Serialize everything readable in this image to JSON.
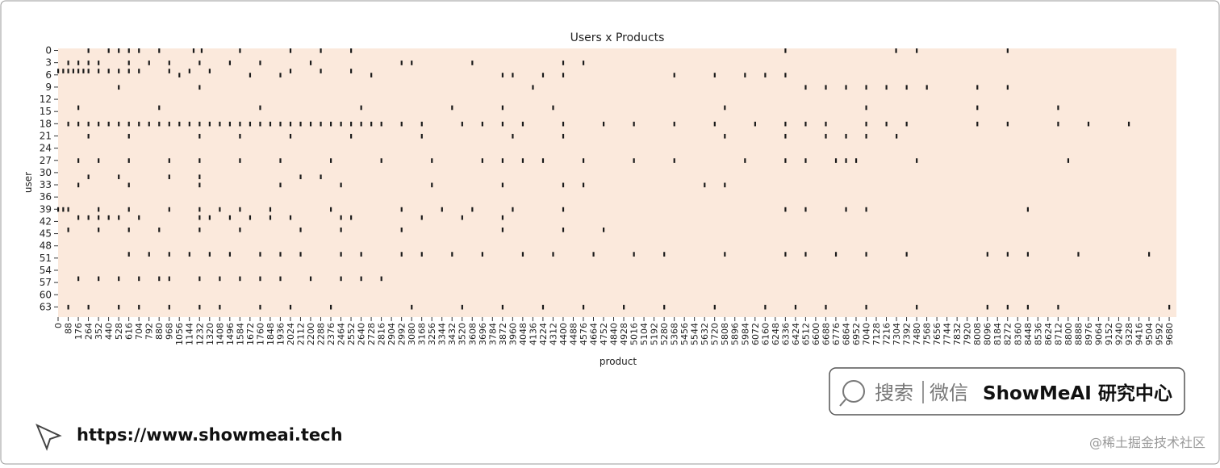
{
  "chart_data": {
    "type": "heatmap",
    "title": "Users x Products",
    "x_label": "product",
    "y_label": "user",
    "background_color": "#fbe9dc",
    "mark_color": "#1a1a1a",
    "xlim": [
      0,
      9743
    ],
    "ylim": [
      0,
      66
    ],
    "xticks": [
      0,
      88,
      176,
      264,
      352,
      440,
      528,
      616,
      704,
      792,
      880,
      968,
      1056,
      1144,
      1232,
      1320,
      1408,
      1496,
      1584,
      1672,
      1760,
      1848,
      1936,
      2024,
      2112,
      2200,
      2288,
      2376,
      2464,
      2552,
      2640,
      2728,
      2816,
      2904,
      2992,
      3080,
      3168,
      3256,
      3344,
      3432,
      3520,
      3608,
      3696,
      3784,
      3872,
      3960,
      4048,
      4136,
      4224,
      4312,
      4400,
      4488,
      4576,
      4664,
      4752,
      4840,
      4928,
      5016,
      5104,
      5192,
      5280,
      5368,
      5456,
      5544,
      5632,
      5720,
      5808,
      5896,
      5984,
      6072,
      6160,
      6248,
      6336,
      6424,
      6512,
      6600,
      6688,
      6776,
      6864,
      6952,
      7040,
      7128,
      7216,
      7304,
      7392,
      7480,
      7568,
      7656,
      7744,
      7832,
      7920,
      8008,
      8096,
      8184,
      8272,
      8360,
      8448,
      8536,
      8624,
      8712,
      8800,
      8888,
      8976,
      9064,
      9152,
      9240,
      9328,
      9416,
      9504,
      9592,
      9680
    ],
    "yticks": [
      0,
      3,
      6,
      9,
      12,
      15,
      18,
      21,
      24,
      27,
      30,
      33,
      36,
      39,
      42,
      45,
      48,
      51,
      54,
      57,
      60,
      63
    ],
    "rows": [
      {
        "user": 0,
        "products": [
          264,
          440,
          528,
          616,
          704,
          880,
          1180,
          1250,
          1584,
          2024,
          2288,
          2552,
          6336,
          7300,
          7480,
          8272
        ]
      },
      {
        "user": 3,
        "products": [
          88,
          176,
          264,
          352,
          616,
          792,
          968,
          1232,
          1496,
          1760,
          2200,
          2992,
          3080,
          3608,
          4400,
          4576
        ]
      },
      {
        "user": 5,
        "products": [
          0,
          44,
          88,
          132,
          176,
          220,
          264,
          352,
          440,
          528,
          616,
          704,
          968,
          1144,
          1320,
          2024,
          2288,
          2552
        ]
      },
      {
        "user": 6,
        "products": [
          1056,
          1672,
          1936,
          2728,
          3872,
          3960,
          4224,
          4400,
          5368,
          5720,
          5984,
          6160,
          6336
        ]
      },
      {
        "user": 9,
        "products": [
          528,
          1232,
          4136,
          6512,
          6688,
          6864,
          7040,
          7216,
          7392,
          7568,
          8008,
          8272
        ]
      },
      {
        "user": 14,
        "products": [
          176,
          880,
          1760,
          2640,
          3432,
          3872,
          4312,
          5808,
          7040,
          8008,
          8712
        ]
      },
      {
        "user": 18,
        "products": [
          88,
          176,
          264,
          352,
          440,
          528,
          616,
          704,
          792,
          880,
          968,
          1056,
          1144,
          1232,
          1320,
          1408,
          1496,
          1584,
          1672,
          1760,
          1848,
          1936,
          2024,
          2112,
          2200,
          2288,
          2376,
          2464,
          2552,
          2640,
          2728,
          2816,
          2992,
          3168,
          3520,
          3696,
          3872,
          4048,
          4400,
          4752,
          5016,
          5368,
          5720,
          6072,
          6336,
          6512,
          6688,
          7040,
          7216,
          7392,
          8008,
          8272,
          8712,
          8976,
          9328
        ]
      },
      {
        "user": 21,
        "products": [
          264,
          616,
          1232,
          1584,
          2024,
          2552,
          3168,
          3960,
          4400,
          5808,
          6336,
          6688,
          6864,
          7040,
          7304
        ]
      },
      {
        "user": 27,
        "products": [
          176,
          352,
          616,
          968,
          1232,
          1584,
          1936,
          2376,
          2816,
          3256,
          3696,
          3872,
          4048,
          4224,
          4576,
          5016,
          5368,
          5984,
          6336,
          6512,
          6776,
          6864,
          6952,
          7480,
          8800
        ]
      },
      {
        "user": 31,
        "products": [
          264,
          528,
          968,
          1232,
          2112,
          2288
        ]
      },
      {
        "user": 33,
        "products": [
          176,
          616,
          1232,
          1936,
          2464,
          3256,
          3872,
          4400,
          4576,
          5632,
          5808
        ]
      },
      {
        "user": 39,
        "products": [
          0,
          44,
          88,
          352,
          616,
          968,
          1232,
          1408,
          1584,
          1848,
          2376,
          2992,
          3344,
          3608,
          3960,
          4400,
          6336,
          6512,
          6864,
          7040,
          8448
        ]
      },
      {
        "user": 41,
        "products": [
          176,
          264,
          352,
          440,
          528,
          704,
          1232,
          1320,
          1496,
          1672,
          1848,
          2024,
          2464,
          2552,
          3168,
          3520,
          3872
        ]
      },
      {
        "user": 44,
        "products": [
          88,
          352,
          616,
          880,
          1232,
          1584,
          2112,
          2464,
          2992,
          3872,
          4400,
          4752
        ]
      },
      {
        "user": 50,
        "products": [
          616,
          792,
          968,
          1144,
          1320,
          1496,
          1760,
          1936,
          2112,
          2464,
          2640,
          2992,
          3168,
          3432,
          3696,
          4048,
          4312,
          4664,
          5016,
          5280,
          5808,
          6336,
          6512,
          6776,
          7040,
          7392,
          8096,
          8272,
          8448,
          8888,
          9504
        ]
      },
      {
        "user": 56,
        "products": [
          176,
          352,
          528,
          704,
          880,
          968,
          1232,
          1408,
          1584,
          1760,
          1936,
          2200,
          2464,
          2640,
          2816
        ]
      },
      {
        "user": 63,
        "products": [
          88,
          264,
          528,
          704,
          968,
          1232,
          1408,
          1760,
          2024,
          2376,
          3080,
          3520,
          3872,
          4224,
          4576,
          4928,
          5280,
          5720,
          6160,
          6424,
          6688,
          7040,
          7480,
          8096,
          8272,
          8448,
          8712,
          9680
        ]
      }
    ]
  },
  "watermark": {
    "search": "搜索",
    "wechat": "微信",
    "brand": "ShowMeAI 研究中心",
    "url": "https://www.showmeai.tech",
    "credit": "@稀土掘金技术社区"
  }
}
